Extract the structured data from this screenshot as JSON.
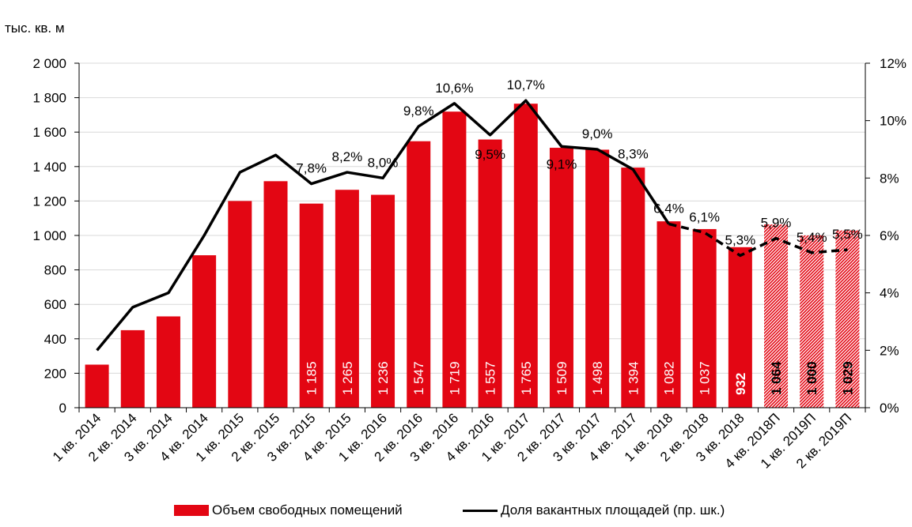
{
  "unit_label": "тыс. кв. м",
  "colors": {
    "bar": "#e30613",
    "line": "#000000",
    "grid": "#d9d9d9",
    "forecast_hatch": "#e30613"
  },
  "chart_data": {
    "type": "bar",
    "combo": "bar+line (secondary axis)",
    "categories": [
      "1 кв. 2014",
      "2 кв. 2014",
      "3 кв. 2014",
      "4 кв. 2014",
      "1 кв. 2015",
      "2 кв. 2015",
      "3 кв. 2015",
      "4 кв. 2015",
      "1 кв. 2016",
      "2 кв. 2016",
      "3 кв. 2016",
      "4 кв. 2016",
      "1 кв. 2017",
      "2 кв. 2017",
      "3 кв. 2017",
      "4 кв. 2017",
      "1 кв. 2018",
      "2 кв. 2018",
      "3 кв. 2018",
      "4 кв. 2018П",
      "1 кв. 2019П",
      "2 кв. 2019П"
    ],
    "series": [
      {
        "name": "Объем свободных помещений",
        "type": "bar",
        "axis": "left",
        "values": [
          250,
          450,
          530,
          885,
          1200,
          1315,
          1185,
          1265,
          1236,
          1547,
          1719,
          1557,
          1765,
          1509,
          1498,
          1394,
          1082,
          1037,
          932,
          1064,
          1000,
          1029
        ],
        "data_labels": [
          "",
          "",
          "",
          "",
          "",
          "",
          "1 185",
          "1 265",
          "1 236",
          "1 547",
          "1 719",
          "1 557",
          "1 765",
          "1 509",
          "1 498",
          "1 394",
          "1 082",
          "1 037",
          "932",
          "1 064",
          "1 000",
          "1 029"
        ],
        "forecast_from_index": 19
      },
      {
        "name": "Доля вакантных  площадей  (пр. шк.)",
        "type": "line",
        "axis": "right",
        "values": [
          2.0,
          3.5,
          4.0,
          6.0,
          8.2,
          8.8,
          7.8,
          8.2,
          8.0,
          9.8,
          10.6,
          9.5,
          10.7,
          9.1,
          9.0,
          8.3,
          6.4,
          6.1,
          5.3,
          5.9,
          5.4,
          5.5
        ],
        "data_labels": [
          "",
          "",
          "",
          "",
          "",
          "",
          "7,8%",
          "8,2%",
          "8,0%",
          "9,8%",
          "10,6%",
          "9,5%",
          "10,7%",
          "9,1%",
          "9,0%",
          "8,3%",
          "6,4%",
          "6,1%",
          "5,3%",
          "5,9%",
          "5,4%",
          "5,5%"
        ],
        "dashed_from_index": 16
      }
    ],
    "y_left": {
      "min": 0,
      "max": 2000,
      "ticks": [
        "0",
        "200",
        "400",
        "600",
        "800",
        "1 000",
        "1 200",
        "1 400",
        "1 600",
        "1 800",
        "2 000"
      ]
    },
    "y_right": {
      "min": 0,
      "max": 12,
      "ticks": [
        "0%",
        "2%",
        "4%",
        "6%",
        "8%",
        "10%",
        "12%"
      ]
    },
    "grid": "horizontal",
    "legend": "bottom"
  }
}
